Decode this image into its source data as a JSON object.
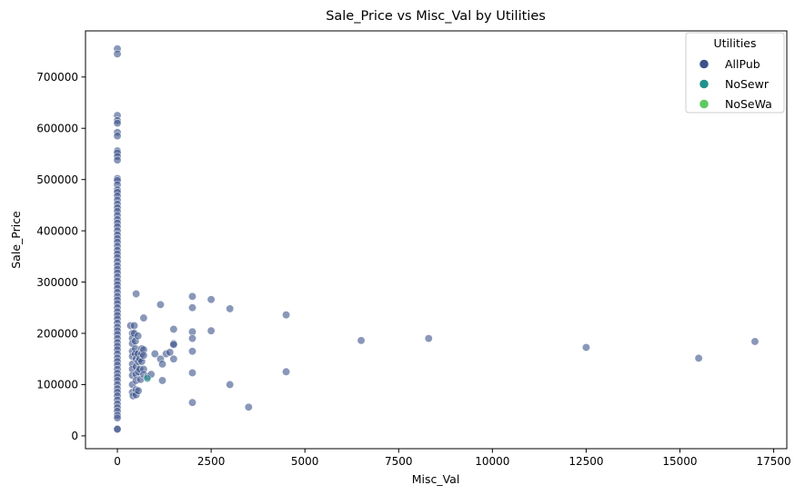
{
  "chart_data": {
    "type": "scatter",
    "title": "Sale_Price vs Misc_Val by Utilities",
    "xlabel": "Misc_Val",
    "ylabel": "Sale_Price",
    "xlim": [
      -850,
      17850
    ],
    "ylim": [
      -25000,
      790000
    ],
    "xticks": [
      0,
      2500,
      5000,
      7500,
      10000,
      12500,
      15000,
      17500
    ],
    "yticks": [
      0,
      100000,
      200000,
      300000,
      400000,
      500000,
      600000,
      700000
    ],
    "legend": {
      "title": "Utilities",
      "placement": "top-right",
      "entries": [
        {
          "label": "AllPub",
          "color": "#3b528b"
        },
        {
          "label": "NoSewr",
          "color": "#21918c"
        },
        {
          "label": "NoSeWa",
          "color": "#5ec962"
        }
      ]
    },
    "series": [
      {
        "name": "AllPub",
        "color": "#3b528b",
        "points": [
          [
            0,
            755000
          ],
          [
            0,
            745000
          ],
          [
            0,
            625000
          ],
          [
            0,
            615000
          ],
          [
            0,
            610000
          ],
          [
            0,
            592000
          ],
          [
            0,
            585000
          ],
          [
            0,
            556000
          ],
          [
            0,
            552000
          ],
          [
            0,
            545000
          ],
          [
            0,
            538000
          ],
          [
            0,
            502000
          ],
          [
            0,
            498000
          ],
          [
            0,
            490000
          ],
          [
            0,
            480000
          ],
          [
            0,
            475000
          ],
          [
            0,
            468000
          ],
          [
            0,
            460000
          ],
          [
            0,
            452000
          ],
          [
            0,
            445000
          ],
          [
            0,
            438000
          ],
          [
            0,
            430000
          ],
          [
            0,
            422000
          ],
          [
            0,
            415000
          ],
          [
            0,
            408000
          ],
          [
            0,
            400000
          ],
          [
            0,
            392000
          ],
          [
            0,
            385000
          ],
          [
            0,
            378000
          ],
          [
            0,
            370000
          ],
          [
            0,
            362000
          ],
          [
            0,
            355000
          ],
          [
            0,
            348000
          ],
          [
            0,
            340000
          ],
          [
            0,
            332000
          ],
          [
            0,
            325000
          ],
          [
            0,
            318000
          ],
          [
            0,
            310000
          ],
          [
            0,
            302000
          ],
          [
            0,
            295000
          ],
          [
            0,
            288000
          ],
          [
            0,
            280000
          ],
          [
            0,
            272000
          ],
          [
            0,
            265000
          ],
          [
            0,
            258000
          ],
          [
            0,
            250000
          ],
          [
            0,
            242000
          ],
          [
            0,
            235000
          ],
          [
            0,
            228000
          ],
          [
            0,
            220000
          ],
          [
            0,
            212000
          ],
          [
            0,
            205000
          ],
          [
            0,
            198000
          ],
          [
            0,
            190000
          ],
          [
            0,
            182000
          ],
          [
            0,
            175000
          ],
          [
            0,
            168000
          ],
          [
            0,
            160000
          ],
          [
            0,
            152000
          ],
          [
            0,
            145000
          ],
          [
            0,
            138000
          ],
          [
            0,
            130000
          ],
          [
            0,
            122000
          ],
          [
            0,
            115000
          ],
          [
            0,
            108000
          ],
          [
            0,
            100000
          ],
          [
            0,
            92000
          ],
          [
            0,
            85000
          ],
          [
            0,
            78000
          ],
          [
            0,
            70000
          ],
          [
            0,
            62000
          ],
          [
            0,
            55000
          ],
          [
            0,
            48000
          ],
          [
            0,
            40000
          ],
          [
            0,
            35000
          ],
          [
            0,
            14000
          ],
          [
            0,
            12800
          ],
          [
            350,
            215000
          ],
          [
            400,
            200000
          ],
          [
            400,
            190000
          ],
          [
            400,
            180000
          ],
          [
            400,
            165000
          ],
          [
            400,
            155000
          ],
          [
            400,
            140000
          ],
          [
            400,
            130000
          ],
          [
            400,
            118000
          ],
          [
            400,
            100000
          ],
          [
            400,
            85000
          ],
          [
            420,
            78000
          ],
          [
            450,
            215000
          ],
          [
            450,
            200000
          ],
          [
            480,
            185000
          ],
          [
            480,
            170000
          ],
          [
            480,
            160000
          ],
          [
            500,
            150000
          ],
          [
            500,
            135000
          ],
          [
            500,
            120000
          ],
          [
            500,
            108000
          ],
          [
            500,
            90000
          ],
          [
            500,
            80000
          ],
          [
            500,
            277000
          ],
          [
            550,
            195000
          ],
          [
            550,
            160000
          ],
          [
            560,
            145000
          ],
          [
            560,
            125000
          ],
          [
            560,
            88000
          ],
          [
            600,
            150000
          ],
          [
            600,
            130000
          ],
          [
            620,
            110000
          ],
          [
            650,
            170000
          ],
          [
            650,
            160000
          ],
          [
            650,
            145000
          ],
          [
            700,
            230000
          ],
          [
            700,
            168000
          ],
          [
            700,
            157000
          ],
          [
            700,
            130000
          ],
          [
            700,
            120000
          ],
          [
            800,
            115000
          ],
          [
            900,
            120000
          ],
          [
            1000,
            160000
          ],
          [
            1150,
            256000
          ],
          [
            1150,
            150000
          ],
          [
            1200,
            140000
          ],
          [
            1200,
            108000
          ],
          [
            1300,
            160000
          ],
          [
            1400,
            163000
          ],
          [
            1500,
            208000
          ],
          [
            1500,
            180000
          ],
          [
            1500,
            178000
          ],
          [
            1500,
            150000
          ],
          [
            2000,
            272000
          ],
          [
            2000,
            250000
          ],
          [
            2000,
            203000
          ],
          [
            2000,
            190000
          ],
          [
            2000,
            165000
          ],
          [
            2000,
            123000
          ],
          [
            2000,
            65000
          ],
          [
            2500,
            266000
          ],
          [
            2500,
            205000
          ],
          [
            3000,
            248000
          ],
          [
            3000,
            100000
          ],
          [
            3500,
            56000
          ],
          [
            4500,
            236000
          ],
          [
            4500,
            125000
          ],
          [
            6500,
            186000
          ],
          [
            8300,
            190000
          ],
          [
            12500,
            172500
          ],
          [
            15500,
            151500
          ],
          [
            17000,
            184000
          ]
        ]
      },
      {
        "name": "NoSewr",
        "color": "#21918c",
        "points": [
          [
            800,
            112000
          ]
        ]
      },
      {
        "name": "NoSeWa",
        "color": "#5ec962",
        "points": []
      }
    ]
  }
}
